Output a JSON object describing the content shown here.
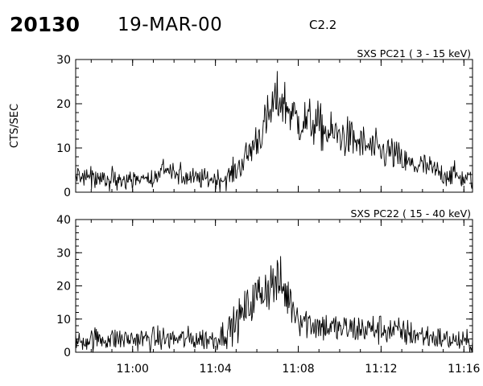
{
  "header": {
    "event_id": "20130",
    "date": "19-MAR-00",
    "goes_class": "C2.2"
  },
  "chart_data": [
    {
      "type": "line",
      "title": "SXS PC21  (  3 - 15 keV)",
      "ylabel": "CTS/SEC",
      "xlabel": "",
      "xlim": [
        "10:57:15",
        "11:16:25"
      ],
      "ylim": [
        0,
        30
      ],
      "yticks": [
        0,
        10,
        20,
        30
      ],
      "xticks": [
        "11:00",
        "11:04",
        "11:08",
        "11:12",
        "11:16"
      ],
      "grid": false,
      "series": [
        {
          "x": [
            "10:57:15",
            "10:58:00",
            "10:59:00",
            "11:00:00",
            "11:01:00",
            "11:01:30",
            "11:02:00",
            "11:03:00",
            "11:04:00",
            "11:04:30",
            "11:05:00",
            "11:05:30",
            "11:06:00",
            "11:06:30",
            "11:06:50",
            "11:07:10",
            "11:07:40",
            "11:08:00",
            "11:08:30",
            "11:09:00",
            "11:09:30",
            "11:10:00",
            "11:10:30",
            "11:11:00",
            "11:11:30",
            "11:12:00",
            "11:12:30",
            "11:13:00",
            "11:13:30",
            "11:14:00",
            "11:14:30",
            "11:15:00",
            "11:15:30",
            "11:16:00",
            "11:16:25"
          ],
          "values": [
            4,
            3,
            3,
            3,
            3,
            5,
            4,
            3,
            3,
            3,
            5,
            8,
            12,
            16,
            20,
            21,
            18,
            16,
            16,
            15,
            13,
            13,
            12,
            11,
            10,
            9,
            9,
            7,
            6,
            6,
            5,
            4,
            4,
            3,
            3
          ]
        }
      ]
    },
    {
      "type": "line",
      "title": "SXS PC22  ( 15 - 40 keV)",
      "ylabel": "",
      "xlabel": "",
      "xlim": [
        "10:57:15",
        "11:16:25"
      ],
      "ylim": [
        0,
        40
      ],
      "yticks": [
        0,
        10,
        20,
        30,
        40
      ],
      "xticks": [
        "11:00",
        "11:04",
        "11:08",
        "11:12",
        "11:16"
      ],
      "grid": false,
      "series": [
        {
          "x": [
            "10:57:15",
            "10:58:00",
            "10:59:00",
            "11:00:00",
            "11:01:00",
            "11:02:00",
            "11:03:00",
            "11:04:00",
            "11:04:30",
            "11:05:00",
            "11:05:30",
            "11:06:00",
            "11:06:30",
            "11:06:50",
            "11:07:10",
            "11:07:40",
            "11:08:00",
            "11:08:30",
            "11:09:00",
            "11:10:00",
            "11:11:00",
            "11:12:00",
            "11:13:00",
            "11:14:00",
            "11:15:00",
            "11:16:00",
            "11:16:25"
          ],
          "values": [
            3,
            4,
            4,
            4,
            4,
            4,
            4,
            4,
            6,
            9,
            13,
            17,
            20,
            21,
            20,
            15,
            11,
            9,
            8,
            7,
            7,
            7,
            6,
            5,
            4,
            3,
            3
          ]
        }
      ]
    }
  ]
}
